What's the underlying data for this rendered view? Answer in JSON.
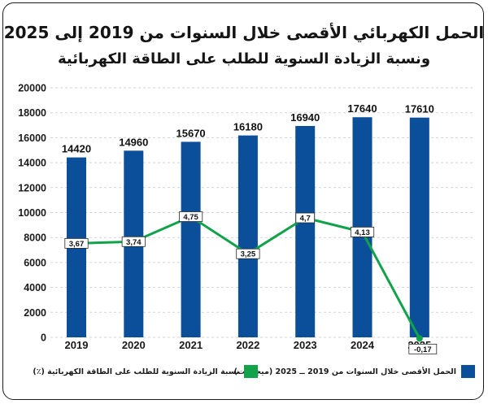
{
  "title": "الحمل الكهربائي الأقصى خلال السنوات من 2019 إلى 2025",
  "subtitle": "ونسبة الزيادة السنوية للطلب على الطاقة الكهربائية",
  "legend": {
    "bars_label": "الحمل الأقصى خلال السنوات من 2019 ــ 2025 (ميجاوات)",
    "line_label": "نسبة الزيادة السنوية للطلب على الطاقة الكهربائية (٪)",
    "bars_color": "#0b4f9a",
    "line_color": "#12a24a"
  },
  "chart_data": {
    "type": "bar",
    "categories": [
      "2019",
      "2020",
      "2021",
      "2022",
      "2023",
      "2024",
      "2025"
    ],
    "series": [
      {
        "name": "الحمل الأقصى خلال السنوات من 2019 ــ 2025 (ميجاوات)",
        "type": "bar",
        "values": [
          14420,
          14960,
          15670,
          16180,
          16940,
          17640,
          17610
        ]
      },
      {
        "name": "نسبة الزيادة السنوية للطلب على الطاقة الكهربائية (٪)",
        "type": "line",
        "values": [
          3.67,
          3.74,
          4.75,
          3.25,
          4.7,
          4.13,
          -0.17
        ],
        "labels": [
          "3,67",
          "3,74",
          "4,75",
          "3,25",
          "4,7",
          "4,13",
          "-0,17"
        ]
      }
    ],
    "yticks": [
      "0",
      "2000",
      "4000",
      "6000",
      "8000",
      "10000",
      "12000",
      "14000",
      "16000",
      "18000",
      "20000"
    ],
    "ylim": [
      0,
      20000
    ],
    "grid": true,
    "legend_position": "bottom"
  }
}
